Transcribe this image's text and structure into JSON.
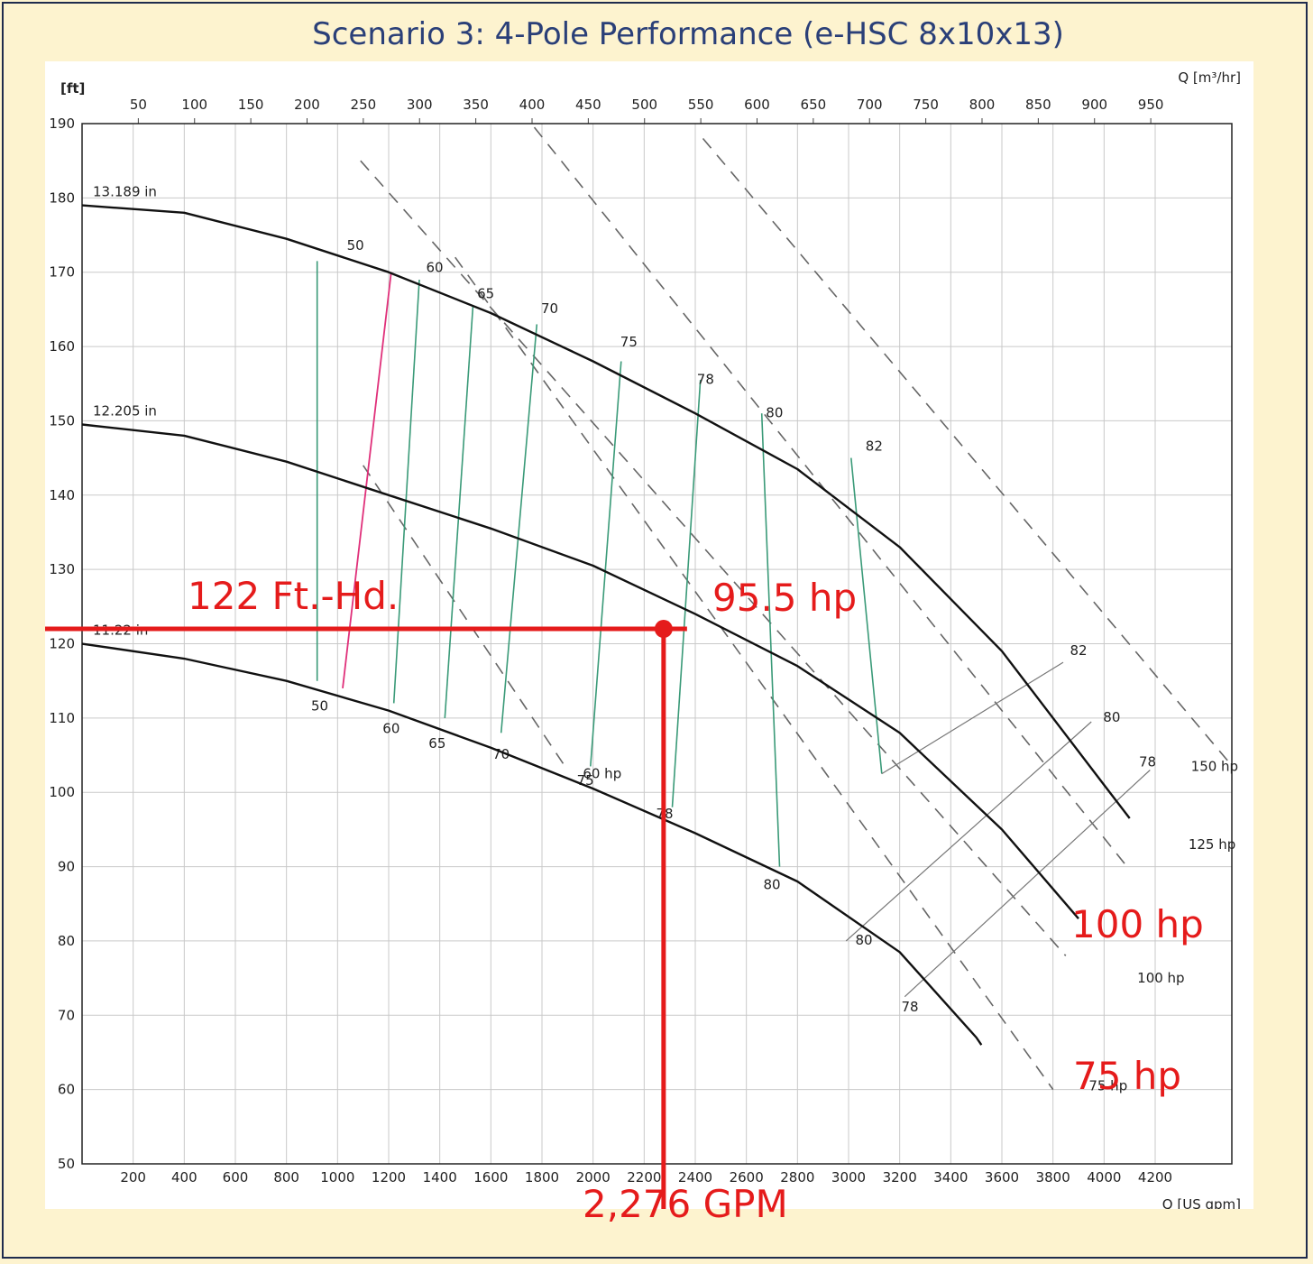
{
  "title": "Scenario 3: 4-Pole Performance (e-HSC 8x10x13)",
  "colors": {
    "background": "#fdf3cf",
    "frame": "#1f2b4d",
    "title": "#2a3f78",
    "curve": "#111111",
    "efficiency": "#3a9a78",
    "highlight_efficiency": "#e0307a",
    "power_dashed": "#666666",
    "annotation": "#e51b1b",
    "grid": "#c9c9c9"
  },
  "annotations": {
    "head_label": "122 Ft.-Hd.",
    "power_label": "95.5 hp",
    "flow_label": "2,276 GPM",
    "motor_100": "100 hp",
    "motor_75": "75 hp"
  },
  "chart_data": {
    "type": "line",
    "title": "Scenario 3: 4-Pole Performance (e-HSC 8x10x13)",
    "xlabel": "Q [US gpm]",
    "ylabel": "[ft]",
    "x2label": "Q [m³/hr]",
    "xlim": [
      0,
      4500
    ],
    "ylim": [
      50,
      190
    ],
    "x_ticks": [
      200,
      400,
      600,
      800,
      1000,
      1200,
      1400,
      1600,
      1800,
      2000,
      2200,
      2400,
      2600,
      2800,
      3000,
      3200,
      3400,
      3600,
      3800,
      4000,
      4200
    ],
    "y_ticks": [
      50,
      60,
      70,
      80,
      90,
      100,
      110,
      120,
      130,
      140,
      150,
      160,
      170,
      180,
      190
    ],
    "x2_ticks": [
      50,
      100,
      150,
      200,
      250,
      300,
      350,
      400,
      450,
      500,
      550,
      600,
      650,
      700,
      750,
      800,
      850,
      900,
      950
    ],
    "grid": true,
    "head_curves": [
      {
        "name": "13.189 in",
        "points": [
          [
            0,
            179
          ],
          [
            400,
            178
          ],
          [
            800,
            174.5
          ],
          [
            1200,
            170
          ],
          [
            1600,
            164.5
          ],
          [
            2000,
            158
          ],
          [
            2400,
            151
          ],
          [
            2800,
            143.5
          ],
          [
            3200,
            133
          ],
          [
            3600,
            119
          ],
          [
            4000,
            101
          ],
          [
            4100,
            96.5
          ]
        ]
      },
      {
        "name": "12.205 in",
        "points": [
          [
            0,
            149.5
          ],
          [
            400,
            148
          ],
          [
            800,
            144.5
          ],
          [
            1200,
            140
          ],
          [
            1600,
            135.5
          ],
          [
            2000,
            130.5
          ],
          [
            2400,
            124
          ],
          [
            2800,
            117
          ],
          [
            3200,
            108
          ],
          [
            3600,
            95
          ],
          [
            3800,
            87
          ],
          [
            3900,
            83
          ]
        ]
      },
      {
        "name": "11.22 in",
        "points": [
          [
            0,
            120
          ],
          [
            400,
            118
          ],
          [
            800,
            115
          ],
          [
            1200,
            111
          ],
          [
            1600,
            106
          ],
          [
            2000,
            100.5
          ],
          [
            2400,
            94.5
          ],
          [
            2800,
            88
          ],
          [
            3200,
            78.5
          ],
          [
            3500,
            67
          ],
          [
            3520,
            66
          ]
        ]
      }
    ],
    "efficiency_lines": [
      {
        "label": "50",
        "points": [
          [
            920,
            171.5
          ],
          [
            920,
            115
          ]
        ],
        "label_top": [
          1070,
          173
        ],
        "label_bottom": [
          930,
          111
        ]
      },
      {
        "label": "60",
        "points": [
          [
            1320,
            169
          ],
          [
            1220,
            112
          ]
        ],
        "label_top": [
          1380,
          170
        ],
        "label_bottom": [
          1210,
          108
        ]
      },
      {
        "label": "65",
        "points": [
          [
            1530,
            165.5
          ],
          [
            1420,
            110
          ]
        ],
        "label_top": [
          1580,
          166.5
        ],
        "label_bottom": [
          1390,
          106
        ]
      },
      {
        "label": "70",
        "points": [
          [
            1780,
            163
          ],
          [
            1640,
            108
          ]
        ],
        "label_top": [
          1830,
          164.5
        ],
        "label_bottom": [
          1640,
          104.5
        ]
      },
      {
        "label": "75",
        "points": [
          [
            2110,
            158
          ],
          [
            1990,
            103.5
          ]
        ],
        "label_top": [
          2140,
          160
        ],
        "label_bottom": [
          1970,
          101
        ]
      },
      {
        "label": "78",
        "points": [
          [
            2420,
            155.5
          ],
          [
            2310,
            98
          ]
        ],
        "label_top": [
          2440,
          155
        ],
        "label_bottom": [
          2280,
          96.5
        ]
      },
      {
        "label": "80",
        "points": [
          [
            2660,
            151
          ],
          [
            2730,
            90
          ]
        ],
        "label_top": [
          2710,
          150.5
        ],
        "label_bottom": [
          2700,
          87
        ]
      },
      {
        "label": "82",
        "points": [
          [
            3010,
            145
          ],
          [
            3130,
            102.5
          ]
        ],
        "label_top": [
          3100,
          146
        ],
        "label_bottom": null
      }
    ],
    "highlight_efficiency_line": {
      "label": "",
      "points": [
        [
          1210,
          170
        ],
        [
          1020,
          114
        ]
      ]
    },
    "right_efficiency_lines": [
      {
        "label": "82",
        "points": [
          [
            3130,
            102.5
          ],
          [
            3840,
            117.5
          ]
        ]
      },
      {
        "label": "80",
        "points": [
          [
            2990,
            80
          ],
          [
            3950,
            109.5
          ]
        ]
      },
      {
        "label": "78",
        "points": [
          [
            3220,
            72.5
          ],
          [
            4180,
            103
          ]
        ]
      }
    ],
    "right_efficiency_labels": [
      {
        "label": "82",
        "at": [
          3900,
          118.5
        ]
      },
      {
        "label": "80",
        "at": [
          4030,
          109.5
        ]
      },
      {
        "label": "78",
        "at": [
          4170,
          103.5
        ]
      },
      {
        "label": "80",
        "at": [
          3060,
          79.5
        ]
      },
      {
        "label": "78",
        "at": [
          3240,
          70.5
        ]
      }
    ],
    "power_lines": [
      {
        "name": "60 hp",
        "points": [
          [
            1100,
            144
          ],
          [
            1900,
            103
          ]
        ],
        "label_at": [
          1960,
          102.5
        ]
      },
      {
        "name": "75 hp",
        "points": [
          [
            1460,
            172
          ],
          [
            3800,
            60
          ]
        ],
        "label_at": [
          3940,
          60.5
        ]
      },
      {
        "name": "100 hp",
        "points": [
          [
            1090,
            185
          ],
          [
            3850,
            78
          ]
        ],
        "label_at": [
          4130,
          75
        ]
      },
      {
        "name": "125 hp",
        "points": [
          [
            1770,
            189.5
          ],
          [
            4090,
            90
          ]
        ],
        "label_at": [
          4330,
          93
        ]
      },
      {
        "name": "150 hp",
        "points": [
          [
            2430,
            188
          ],
          [
            4490,
            104
          ]
        ],
        "label_at": [
          4340,
          103.5
        ]
      }
    ],
    "operating_point": {
      "flow_gpm": 2276,
      "head_ft": 122,
      "power_hp": 95.5
    }
  }
}
